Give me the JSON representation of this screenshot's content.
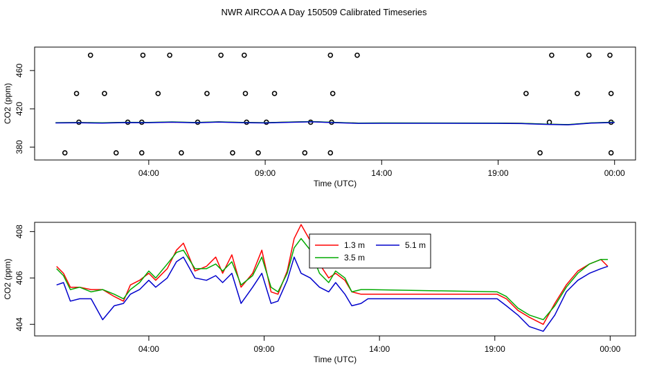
{
  "title": "NWR AIRCOA A  Day 150509  Calibrated Timeseries",
  "chart_data": [
    {
      "type": "scatter",
      "title": "NWR AIRCOA A  Day 150509  Calibrated Timeseries",
      "xlabel": "Time (UTC)",
      "ylabel": "CO2 (ppm)",
      "xlim": [
        -0.9,
        24.9
      ],
      "ylim": [
        366.5,
        484.5
      ],
      "xticks": [
        4,
        9,
        14,
        19,
        24
      ],
      "xtick_labels": [
        "04:00",
        "09:00",
        "14:00",
        "19:00",
        "00:00"
      ],
      "yticks": [
        380,
        420,
        460
      ],
      "ytick_labels": [
        "380",
        "420",
        "460"
      ],
      "reference_points": {
        "name": "standards",
        "x": [
          0.4,
          2.6,
          3.7,
          5.4,
          7.6,
          8.7,
          10.7,
          11.8,
          20.8,
          23.85,
          1.5,
          3.75,
          4.9,
          7.1,
          8.1,
          11.8,
          12.95,
          21.3,
          22.9,
          23.8,
          0.9,
          2.1,
          4.4,
          6.5,
          8.15,
          9.4,
          11.9,
          20.2,
          22.4,
          23.85,
          1.0,
          3.1,
          3.7,
          6.1,
          8.2,
          9.05,
          10.95,
          11.85,
          21.2,
          23.85
        ],
        "y": [
          374,
          374,
          374,
          374,
          374,
          374,
          374,
          374,
          374,
          374,
          476,
          476,
          476,
          476,
          476,
          476,
          476,
          476,
          476,
          476,
          436,
          436,
          436,
          436,
          436,
          436,
          436,
          436,
          436,
          436,
          406,
          406,
          406,
          406,
          406,
          406,
          406,
          406,
          406,
          406
        ]
      },
      "series": [
        {
          "name": "1.3 m",
          "color": "#ff0000",
          "x": [
            0,
            1,
            2,
            3,
            4,
            5,
            6,
            7,
            8,
            9,
            10,
            11,
            12,
            13,
            14,
            19,
            20,
            21,
            22,
            23,
            24
          ],
          "y": [
            405.4,
            405.6,
            405.3,
            405.8,
            405.7,
            406.2,
            405.6,
            406.3,
            405.7,
            405.4,
            406.1,
            406.6,
            405.7,
            405.0,
            405.1,
            405.0,
            404.8,
            404.0,
            403.4,
            405.2,
            405.9
          ]
        },
        {
          "name": "3.5 m",
          "color": "#00aa00",
          "x": [
            0,
            1,
            2,
            3,
            4,
            5,
            6,
            7,
            8,
            9,
            10,
            11,
            12,
            13,
            14,
            19,
            20,
            21,
            22,
            23,
            24
          ],
          "y": [
            405.5,
            405.7,
            405.4,
            405.9,
            405.8,
            406.3,
            405.7,
            406.4,
            405.8,
            405.5,
            406.2,
            406.7,
            405.8,
            405.1,
            405.2,
            405.1,
            404.9,
            404.1,
            403.5,
            405.3,
            406.0
          ]
        },
        {
          "name": "5.1 m",
          "color": "#0000cc",
          "x": [
            0,
            1,
            2,
            3,
            4,
            5,
            6,
            7,
            8,
            9,
            10,
            11,
            12,
            13,
            14,
            19,
            20,
            21,
            22,
            23,
            24
          ],
          "y": [
            405.2,
            405.4,
            405.1,
            405.6,
            405.5,
            406.0,
            405.4,
            406.1,
            405.5,
            405.2,
            405.9,
            406.4,
            405.5,
            404.8,
            404.9,
            404.8,
            404.6,
            403.8,
            403.2,
            405.0,
            405.7
          ]
        }
      ]
    },
    {
      "type": "line",
      "xlabel": "Time (UTC)",
      "ylabel": "CO2 (ppm)",
      "xlim": [
        -0.95,
        25.1
      ],
      "ylim": [
        403.5,
        408.4
      ],
      "xticks": [
        4,
        9,
        14,
        19,
        24
      ],
      "xtick_labels": [
        "04:00",
        "09:00",
        "14:00",
        "19:00",
        "00:00"
      ],
      "yticks": [
        404,
        406,
        408
      ],
      "ytick_labels": [
        "404",
        "406",
        "408"
      ],
      "legend": {
        "position": "top-center",
        "entries": [
          "1.3 m",
          "3.5 m",
          "5.1 m"
        ]
      },
      "series": [
        {
          "name": "1.3 m",
          "color": "#ff0000",
          "x": [
            0,
            0.3,
            0.6,
            1.0,
            1.5,
            2.0,
            2.5,
            2.9,
            3.2,
            3.6,
            4.0,
            4.3,
            4.8,
            5.2,
            5.5,
            6.0,
            6.5,
            6.9,
            7.2,
            7.6,
            8.0,
            8.5,
            8.9,
            9.3,
            9.6,
            10.0,
            10.3,
            10.6,
            11.0,
            11.4,
            11.8,
            12.1,
            12.5,
            12.8,
            13.2,
            13.5,
            19.1,
            19.5,
            20.0,
            20.5,
            21.1,
            21.6,
            22.1,
            22.6,
            23.1,
            23.6,
            23.9
          ],
          "y": [
            406.5,
            406.2,
            405.6,
            405.6,
            405.5,
            405.5,
            405.2,
            405.0,
            405.7,
            405.9,
            406.2,
            405.9,
            406.4,
            407.2,
            407.5,
            406.3,
            406.5,
            406.9,
            406.2,
            407.0,
            405.6,
            406.2,
            407.2,
            405.4,
            405.3,
            406.3,
            407.7,
            408.3,
            407.6,
            406.6,
            406.0,
            406.2,
            405.9,
            405.4,
            405.3,
            405.3,
            405.3,
            405.1,
            404.6,
            404.3,
            404.0,
            404.9,
            405.7,
            406.3,
            406.6,
            406.8,
            406.5
          ]
        },
        {
          "name": "3.5 m",
          "color": "#00aa00",
          "x": [
            0,
            0.3,
            0.6,
            1.0,
            1.5,
            2.0,
            2.5,
            2.9,
            3.2,
            3.6,
            4.0,
            4.3,
            4.8,
            5.2,
            5.5,
            6.0,
            6.5,
            6.9,
            7.2,
            7.6,
            8.0,
            8.5,
            8.9,
            9.3,
            9.6,
            10.0,
            10.3,
            10.6,
            11.0,
            11.4,
            11.8,
            12.1,
            12.5,
            12.8,
            13.2,
            13.5,
            19.1,
            19.5,
            20.0,
            20.5,
            21.1,
            21.6,
            22.1,
            22.6,
            23.1,
            23.6,
            23.9
          ],
          "y": [
            406.4,
            406.1,
            405.5,
            405.6,
            405.4,
            405.5,
            405.3,
            405.1,
            405.5,
            405.8,
            406.3,
            406.0,
            406.6,
            407.1,
            407.2,
            406.4,
            406.4,
            406.6,
            406.3,
            406.7,
            405.7,
            406.1,
            406.9,
            405.6,
            405.4,
            406.2,
            407.3,
            407.7,
            407.2,
            406.2,
            405.8,
            406.3,
            406.0,
            405.4,
            405.5,
            405.5,
            405.4,
            405.2,
            404.7,
            404.4,
            404.2,
            404.8,
            405.6,
            406.2,
            406.6,
            406.8,
            406.8
          ]
        },
        {
          "name": "5.1 m",
          "color": "#0000cc",
          "x": [
            0,
            0.3,
            0.6,
            1.0,
            1.5,
            2.0,
            2.5,
            2.9,
            3.2,
            3.6,
            4.0,
            4.3,
            4.8,
            5.2,
            5.5,
            6.0,
            6.5,
            6.9,
            7.2,
            7.6,
            8.0,
            8.5,
            8.9,
            9.3,
            9.6,
            10.0,
            10.3,
            10.6,
            11.0,
            11.4,
            11.8,
            12.1,
            12.5,
            12.8,
            13.2,
            13.5,
            19.1,
            19.5,
            20.0,
            20.5,
            21.1,
            21.6,
            22.1,
            22.6,
            23.1,
            23.6,
            23.9
          ],
          "y": [
            405.7,
            405.8,
            405.0,
            405.1,
            405.1,
            404.2,
            404.8,
            404.9,
            405.3,
            405.5,
            405.9,
            405.6,
            406.0,
            406.7,
            406.9,
            406.0,
            405.9,
            406.1,
            405.8,
            406.2,
            404.9,
            405.6,
            406.2,
            404.9,
            405.0,
            405.9,
            406.9,
            406.2,
            406.0,
            405.6,
            405.4,
            405.8,
            405.3,
            404.8,
            404.9,
            405.1,
            405.1,
            404.8,
            404.4,
            403.9,
            403.7,
            404.4,
            405.4,
            405.9,
            406.2,
            406.4,
            406.5
          ]
        }
      ]
    }
  ]
}
